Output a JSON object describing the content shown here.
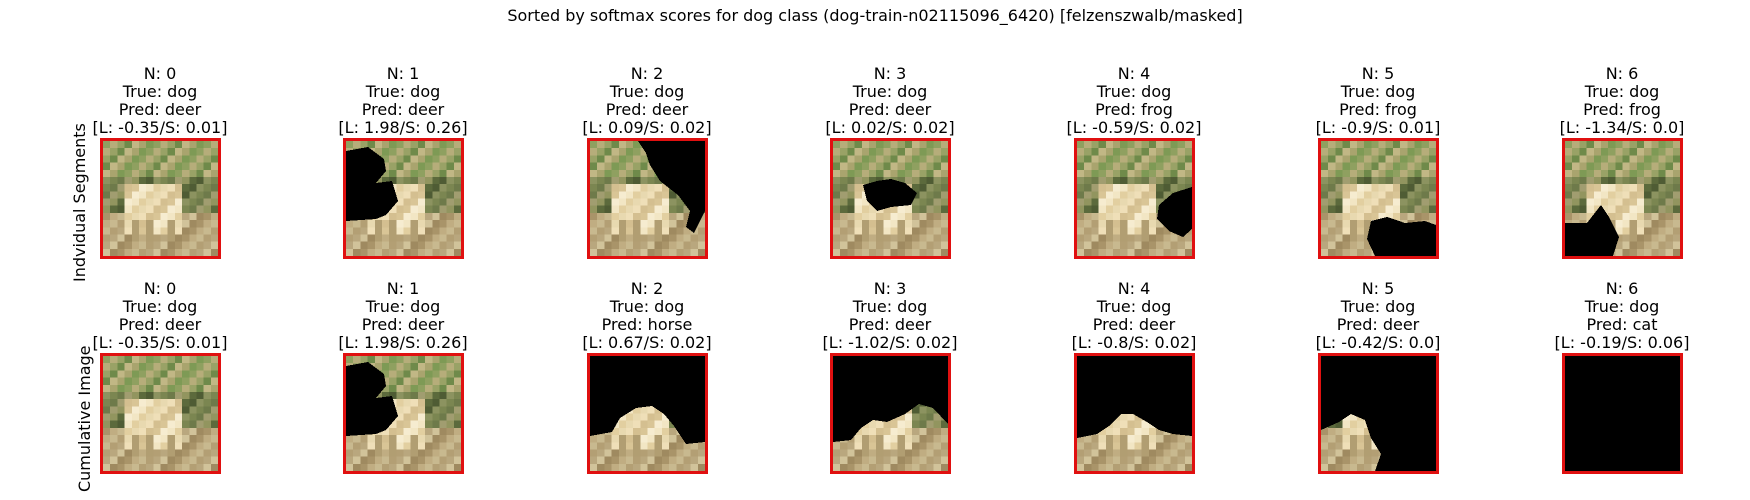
{
  "title": "Sorted by softmax scores for dog class (dog-train-n02115096_6420) [felzenszwalb/masked]",
  "colors": {
    "frame": "#e01010",
    "mask": "#000000"
  },
  "rows": [
    {
      "label": "Indvidual Segments",
      "panels": [
        {
          "n": "N: 0",
          "true": "True: dog",
          "pred": "Pred: deer",
          "scores": "[L: -0.35/S: 0.01]",
          "mask": "none"
        },
        {
          "n": "N: 1",
          "true": "True: dog",
          "pred": "Pred: deer",
          "scores": "[L: 1.98/S: 0.26]",
          "mask": "left-blob"
        },
        {
          "n": "N: 2",
          "true": "True: dog",
          "pred": "Pred: deer",
          "scores": "[L: 0.09/S: 0.02]",
          "mask": "right-blob"
        },
        {
          "n": "N: 3",
          "true": "True: dog",
          "pred": "Pred: deer",
          "scores": "[L: 0.02/S: 0.02]",
          "mask": "center-blob"
        },
        {
          "n": "N: 4",
          "true": "True: dog",
          "pred": "Pred: frog",
          "scores": "[L: -0.59/S: 0.02]",
          "mask": "right-small"
        },
        {
          "n": "N: 5",
          "true": "True: dog",
          "pred": "Pred: frog",
          "scores": "[L: -0.9/S: 0.01]",
          "mask": "bottom-right"
        },
        {
          "n": "N: 6",
          "true": "True: dog",
          "pred": "Pred: frog",
          "scores": "[L: -1.34/S: 0.0]",
          "mask": "bottom-left"
        }
      ]
    },
    {
      "label": "Cumulative Image",
      "panels": [
        {
          "n": "N: 0",
          "true": "True: dog",
          "pred": "Pred: deer",
          "scores": "[L: -0.35/S: 0.01]",
          "mask": "none"
        },
        {
          "n": "N: 1",
          "true": "True: dog",
          "pred": "Pred: deer",
          "scores": "[L: 1.98/S: 0.26]",
          "mask": "left-blob"
        },
        {
          "n": "N: 2",
          "true": "True: dog",
          "pred": "Pred: horse",
          "scores": "[L: 0.67/S: 0.02]",
          "mask": "keep-dog-bottom"
        },
        {
          "n": "N: 3",
          "true": "True: dog",
          "pred": "Pred: deer",
          "scores": "[L: -1.02/S: 0.02]",
          "mask": "keep-bottom-strip"
        },
        {
          "n": "N: 4",
          "true": "True: dog",
          "pred": "Pred: deer",
          "scores": "[L: -0.8/S: 0.02]",
          "mask": "keep-bottom-strip-2"
        },
        {
          "n": "N: 5",
          "true": "True: dog",
          "pred": "Pred: deer",
          "scores": "[L: -0.42/S: 0.0]",
          "mask": "keep-bottom-left"
        },
        {
          "n": "N: 6",
          "true": "True: dog",
          "pred": "Pred: cat",
          "scores": "[L: -0.19/S: 0.06]",
          "mask": "all"
        }
      ]
    }
  ]
}
